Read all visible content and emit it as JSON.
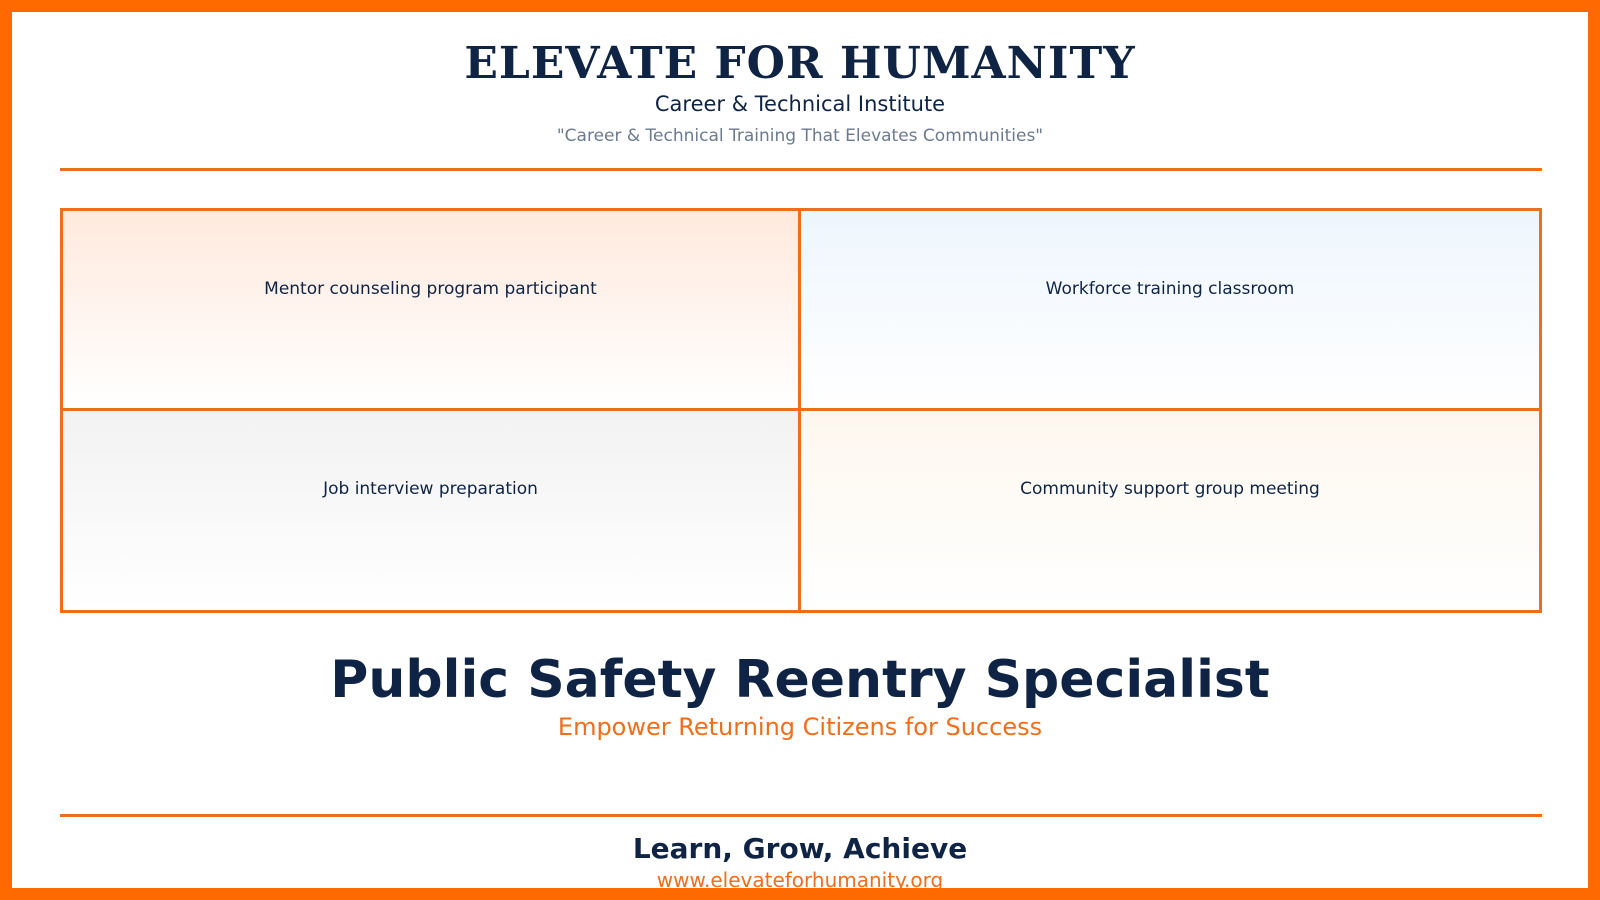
{
  "header": {
    "org_name": "ELEVATE FOR HUMANITY",
    "institute": "Career & Technical Institute",
    "tagline": "\"Career & Technical Training That Elevates Communities\""
  },
  "photo_grid": {
    "cells": [
      {
        "label": "Mentor counseling program participant"
      },
      {
        "label": "Workforce training classroom"
      },
      {
        "label": "Job interview preparation"
      },
      {
        "label": "Community support group meeting"
      }
    ]
  },
  "program": {
    "title": "Public Safety Reentry Specialist",
    "subtitle": "Empower Returning Citizens for Success"
  },
  "footer": {
    "motto": "Learn, Grow, Achieve",
    "website": "www.elevateforhumanity.org"
  },
  "colors": {
    "accent": "#ee6e1c",
    "frame": "#ff6a00",
    "navy": "#0f2444",
    "muted": "#6b7a90"
  }
}
